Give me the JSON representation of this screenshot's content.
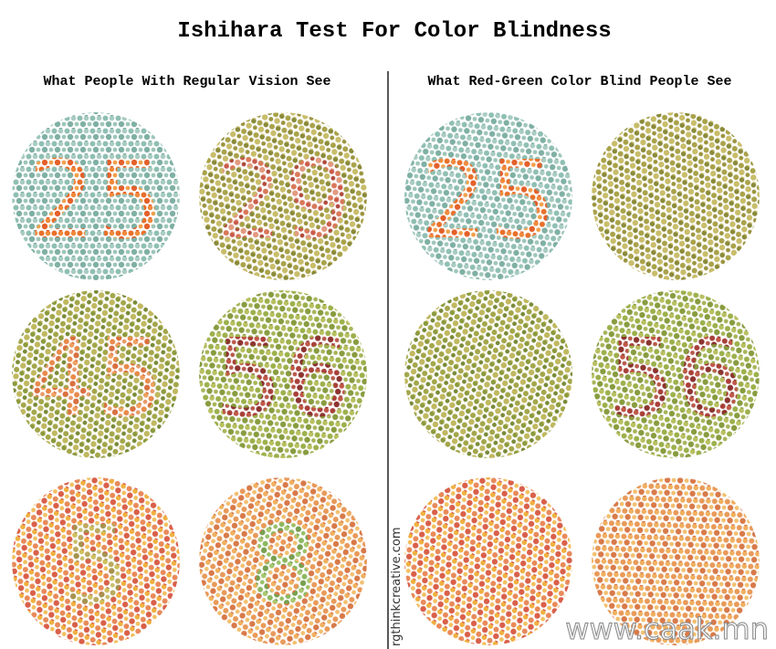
{
  "header": {
    "title": "Ishihara Test For Color Blindness"
  },
  "columns": [
    {
      "heading": "What People With Regular Vision See",
      "plates": [
        {
          "digits": "25"
        },
        {
          "digits": "29"
        },
        {
          "digits": "45"
        },
        {
          "digits": "56"
        },
        {
          "digits": "5"
        },
        {
          "digits": "8"
        }
      ]
    },
    {
      "heading": "What Red-Green Color Blind People See",
      "plates": [
        {
          "digits": "25"
        },
        {},
        {},
        {
          "digits": "56"
        },
        {},
        {}
      ]
    }
  ],
  "credit": "rgthinkcreative.com",
  "watermark": "www.caak.mn"
}
